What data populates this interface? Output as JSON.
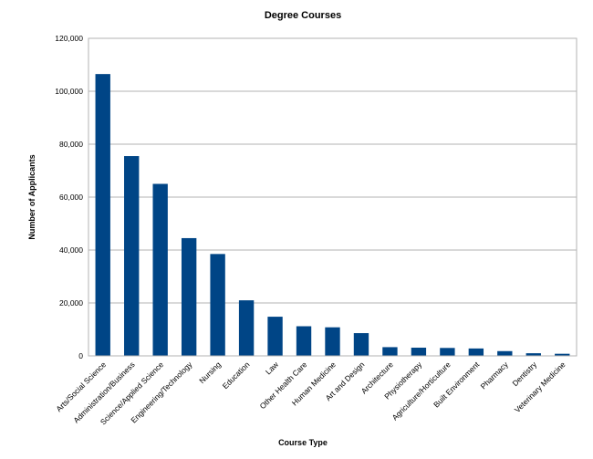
{
  "chart_data": {
    "type": "bar",
    "title": "Degree Courses",
    "xlabel": "Course Type",
    "ylabel": "Number of Applicants",
    "ylim": [
      0,
      120000
    ],
    "yticks": [
      0,
      20000,
      40000,
      60000,
      80000,
      100000,
      120000
    ],
    "ytick_labels": [
      "0",
      "20,000",
      "40,000",
      "60,000",
      "80,000",
      "100,000",
      "120,000"
    ],
    "grid": true,
    "legend": "none",
    "bar_color": "#004586",
    "categories": [
      "Arts/Social Science",
      "Administration/Business",
      "Science/Applied Science",
      "Engineering/Technology",
      "Nursing",
      "Education",
      "Law",
      "Other Health Care",
      "Human Medicine",
      "Art and Design",
      "Architecture",
      "Physiotherapy",
      "Agriculture/Horticulture",
      "Built Environment",
      "Pharmacy",
      "Dentistry",
      "Veterinary Medicine"
    ],
    "values": [
      106500,
      75500,
      65000,
      44500,
      38500,
      21000,
      14800,
      11200,
      10800,
      8600,
      3300,
      3100,
      3000,
      2800,
      1800,
      1000,
      800
    ]
  }
}
